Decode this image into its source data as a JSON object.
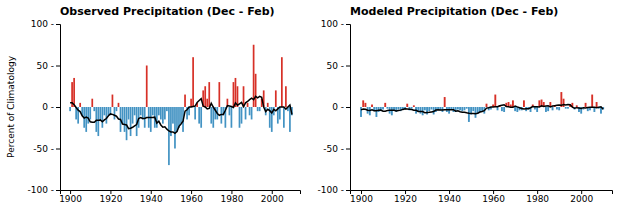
{
  "chart_data": [
    {
      "type": "bar",
      "title": "Observed Precipitation (Dec - Feb)",
      "ylabel": "Percent of Climatology",
      "x": [
        1900,
        1901,
        1902,
        1903,
        1904,
        1905,
        1906,
        1907,
        1908,
        1909,
        1910,
        1911,
        1912,
        1913,
        1914,
        1915,
        1916,
        1917,
        1918,
        1919,
        1920,
        1921,
        1922,
        1923,
        1924,
        1925,
        1926,
        1927,
        1928,
        1929,
        1930,
        1931,
        1932,
        1933,
        1934,
        1935,
        1936,
        1937,
        1938,
        1939,
        1940,
        1941,
        1942,
        1943,
        1944,
        1945,
        1946,
        1947,
        1948,
        1949,
        1950,
        1951,
        1952,
        1953,
        1954,
        1955,
        1956,
        1957,
        1958,
        1959,
        1960,
        1961,
        1962,
        1963,
        1964,
        1965,
        1966,
        1967,
        1968,
        1969,
        1970,
        1971,
        1972,
        1973,
        1974,
        1975,
        1976,
        1977,
        1978,
        1979,
        1980,
        1981,
        1982,
        1983,
        1984,
        1985,
        1986,
        1987,
        1988,
        1989,
        1990,
        1991,
        1992,
        1993,
        1994,
        1995,
        1996,
        1997,
        1998,
        1999,
        2000,
        2001,
        2002,
        2003,
        2004,
        2005,
        2006,
        2007,
        2008,
        2009,
        2010
      ],
      "series": [
        {
          "type": "bar",
          "values": [
            -5,
            30,
            35,
            -15,
            -20,
            5,
            -10,
            -25,
            -30,
            -20,
            -15,
            10,
            -5,
            -30,
            -35,
            -15,
            -25,
            -10,
            -20,
            -10,
            -10,
            15,
            -15,
            -5,
            5,
            -30,
            -20,
            -30,
            -40,
            -15,
            -35,
            -20,
            -10,
            -35,
            -25,
            -10,
            -15,
            -25,
            50,
            -25,
            -30,
            -10,
            -25,
            -25,
            -10,
            -15,
            -20,
            -15,
            -5,
            -70,
            -35,
            -20,
            -50,
            -30,
            -25,
            -20,
            -30,
            15,
            -15,
            -10,
            10,
            60,
            -15,
            5,
            -20,
            -25,
            20,
            25,
            10,
            30,
            -20,
            -25,
            -15,
            -15,
            30,
            -20,
            -10,
            -25,
            10,
            -10,
            -25,
            30,
            35,
            25,
            -25,
            -20,
            25,
            -15,
            5,
            -10,
            -15,
            75,
            40,
            -5,
            -5,
            10,
            20,
            -10,
            5,
            -25,
            -30,
            -10,
            20,
            -20,
            -15,
            60,
            -25,
            25,
            -5,
            -30,
            -10
          ],
          "colors": [
            "#4393c3",
            "#d73027",
            "#d73027",
            "#4393c3",
            "#4393c3",
            "#d73027",
            "#4393c3",
            "#4393c3",
            "#4393c3",
            "#4393c3",
            "#4393c3",
            "#d73027",
            "#4393c3",
            "#4393c3",
            "#4393c3",
            "#4393c3",
            "#4393c3",
            "#4393c3",
            "#4393c3",
            "#4393c3",
            "#4393c3",
            "#d73027",
            "#4393c3",
            "#4393c3",
            "#d73027",
            "#4393c3",
            "#4393c3",
            "#4393c3",
            "#4393c3",
            "#4393c3",
            "#4393c3",
            "#4393c3",
            "#4393c3",
            "#4393c3",
            "#4393c3",
            "#4393c3",
            "#4393c3",
            "#4393c3",
            "#d73027",
            "#4393c3",
            "#4393c3",
            "#4393c3",
            "#4393c3",
            "#4393c3",
            "#4393c3",
            "#4393c3",
            "#4393c3",
            "#4393c3",
            "#4393c3",
            "#4393c3",
            "#4393c3",
            "#4393c3",
            "#4393c3",
            "#4393c3",
            "#4393c3",
            "#4393c3",
            "#4393c3",
            "#d73027",
            "#4393c3",
            "#4393c3",
            "#d73027",
            "#d73027",
            "#4393c3",
            "#d73027",
            "#4393c3",
            "#4393c3",
            "#d73027",
            "#d73027",
            "#d73027",
            "#d73027",
            "#4393c3",
            "#4393c3",
            "#4393c3",
            "#4393c3",
            "#d73027",
            "#4393c3",
            "#4393c3",
            "#4393c3",
            "#d73027",
            "#4393c3",
            "#4393c3",
            "#d73027",
            "#d73027",
            "#d73027",
            "#4393c3",
            "#4393c3",
            "#d73027",
            "#4393c3",
            "#d73027",
            "#4393c3",
            "#4393c3",
            "#d73027",
            "#d73027",
            "#4393c3",
            "#4393c3",
            "#d73027",
            "#d73027",
            "#4393c3",
            "#d73027",
            "#4393c3",
            "#4393c3",
            "#4393c3",
            "#d73027",
            "#4393c3",
            "#4393c3",
            "#d73027",
            "#4393c3",
            "#d73027",
            "#4393c3",
            "#4393c3",
            "#4393c3"
          ]
        },
        {
          "type": "line",
          "color": "#000000",
          "values": [
            5,
            5,
            2.8571,
            -0.625,
            -3.8889,
            -5.5556,
            -10.5556,
            -13.3333,
            -12.2222,
            -13.3333,
            -17.7778,
            -18.3333,
            -18.3333,
            -16.1111,
            -16.1111,
            -15.5556,
            -17.7778,
            -15.5556,
            -13.8889,
            -10.5556,
            -8.3333,
            -8.8889,
            -10,
            -11.1111,
            -14.4444,
            -15,
            -20.5556,
            -21.1111,
            -21.6667,
            -26.1111,
            -25.5556,
            -24.4444,
            -22.7778,
            -21.1111,
            -13.8889,
            -12.7778,
            -13.8889,
            -13.8889,
            -12.7778,
            -12.7778,
            -12.7778,
            -12.7778,
            -12.2222,
            -19.4444,
            -17.2222,
            -21.6667,
            -24.4444,
            -23.8889,
            -26.6667,
            -28.8889,
            -30,
            -30,
            -31.6667,
            -29.4444,
            -23.3333,
            -20.5556,
            -17.2222,
            -5,
            -3.3333,
            0,
            0,
            0.5556,
            1.1111,
            5.5556,
            7.7778,
            10,
            1.1111,
            0,
            -2.2222,
            -1.6667,
            4.4444,
            0,
            -3.8889,
            -7.7778,
            -10,
            -8.8889,
            -8.8889,
            -3.8889,
            1.6667,
            1.1111,
            0.5556,
            -0.5556,
            5,
            2.2222,
            3.8889,
            5.5556,
            0.5556,
            5,
            6.6667,
            8.8889,
            10.5556,
            8.8889,
            12.7778,
            11.1111,
            12.7778,
            11.6667,
            0,
            -5.5556,
            -2.7778,
            -4.4444,
            -7.2222,
            -2.7778,
            -4.4444,
            -2.2222,
            0,
            0,
            0,
            -2.5,
            0,
            2.5,
            -9
          ]
        }
      ],
      "xlim": [
        1895,
        2014
      ],
      "xticks": [
        1900,
        1920,
        1940,
        1960,
        1980,
        2000
      ],
      "ylim": [
        -100,
        100
      ],
      "yticks": [
        {
          "value": -100,
          "label": "-100 -"
        },
        {
          "value": -50,
          "label": "-50 -"
        },
        {
          "value": 0,
          "label": "0 -"
        },
        {
          "value": 50,
          "label": "50 -"
        },
        {
          "value": 100,
          "label": "100 -"
        }
      ],
      "grid": false
    },
    {
      "type": "bar",
      "title": "Modeled Precipitation (Dec - Feb)",
      "x": [
        1900,
        1901,
        1902,
        1903,
        1904,
        1905,
        1906,
        1907,
        1908,
        1909,
        1910,
        1911,
        1912,
        1913,
        1914,
        1915,
        1916,
        1917,
        1918,
        1919,
        1920,
        1921,
        1922,
        1923,
        1924,
        1925,
        1926,
        1927,
        1928,
        1929,
        1930,
        1931,
        1932,
        1933,
        1934,
        1935,
        1936,
        1937,
        1938,
        1939,
        1940,
        1941,
        1942,
        1943,
        1944,
        1945,
        1946,
        1947,
        1948,
        1949,
        1950,
        1951,
        1952,
        1953,
        1954,
        1955,
        1956,
        1957,
        1958,
        1959,
        1960,
        1961,
        1962,
        1963,
        1964,
        1965,
        1966,
        1967,
        1968,
        1969,
        1970,
        1971,
        1972,
        1973,
        1974,
        1975,
        1976,
        1977,
        1978,
        1979,
        1980,
        1981,
        1982,
        1983,
        1984,
        1985,
        1986,
        1987,
        1988,
        1989,
        1990,
        1991,
        1992,
        1993,
        1994,
        1995,
        1996,
        1997,
        1998,
        1999,
        2000,
        2001,
        2002,
        2003,
        2004,
        2005,
        2006,
        2007,
        2008,
        2009,
        2010
      ],
      "series": [
        {
          "type": "bar",
          "values": [
            -12,
            8,
            5,
            -8,
            -10,
            3,
            -5,
            -12,
            -6,
            -5,
            -3,
            5,
            -2,
            -8,
            -10,
            -4,
            -6,
            -3,
            -5,
            -3,
            -3,
            4,
            -4,
            -2,
            2,
            -8,
            -5,
            -8,
            -10,
            -4,
            -9,
            -5,
            -3,
            -9,
            -6,
            -3,
            -4,
            -6,
            12,
            -6,
            -8,
            -3,
            -6,
            -6,
            -3,
            -4,
            -5,
            -4,
            -2,
            -18,
            -9,
            -5,
            -13,
            -8,
            -6,
            -5,
            -8,
            4,
            -4,
            -3,
            3,
            15,
            -4,
            2,
            -5,
            -6,
            5,
            6,
            3,
            8,
            -5,
            -6,
            -4,
            -4,
            8,
            -5,
            -3,
            -6,
            3,
            -3,
            -6,
            8,
            9,
            6,
            -6,
            -5,
            6,
            -4,
            2,
            -3,
            -4,
            18,
            10,
            -2,
            -2,
            3,
            5,
            -3,
            2,
            -6,
            -8,
            -3,
            5,
            -5,
            -4,
            15,
            -6,
            6,
            -2,
            -8,
            -3
          ],
          "colors": [
            "#4393c3",
            "#d73027",
            "#d73027",
            "#4393c3",
            "#4393c3",
            "#d73027",
            "#4393c3",
            "#4393c3",
            "#4393c3",
            "#4393c3",
            "#4393c3",
            "#d73027",
            "#4393c3",
            "#4393c3",
            "#4393c3",
            "#4393c3",
            "#4393c3",
            "#4393c3",
            "#4393c3",
            "#4393c3",
            "#4393c3",
            "#d73027",
            "#4393c3",
            "#4393c3",
            "#d73027",
            "#4393c3",
            "#4393c3",
            "#4393c3",
            "#4393c3",
            "#4393c3",
            "#4393c3",
            "#4393c3",
            "#4393c3",
            "#4393c3",
            "#4393c3",
            "#4393c3",
            "#4393c3",
            "#4393c3",
            "#d73027",
            "#4393c3",
            "#4393c3",
            "#4393c3",
            "#4393c3",
            "#4393c3",
            "#4393c3",
            "#4393c3",
            "#4393c3",
            "#4393c3",
            "#4393c3",
            "#4393c3",
            "#4393c3",
            "#4393c3",
            "#4393c3",
            "#4393c3",
            "#4393c3",
            "#4393c3",
            "#4393c3",
            "#d73027",
            "#4393c3",
            "#4393c3",
            "#d73027",
            "#d73027",
            "#4393c3",
            "#d73027",
            "#4393c3",
            "#4393c3",
            "#d73027",
            "#d73027",
            "#d73027",
            "#d73027",
            "#4393c3",
            "#4393c3",
            "#4393c3",
            "#4393c3",
            "#d73027",
            "#4393c3",
            "#4393c3",
            "#4393c3",
            "#d73027",
            "#4393c3",
            "#4393c3",
            "#d73027",
            "#d73027",
            "#d73027",
            "#4393c3",
            "#4393c3",
            "#d73027",
            "#4393c3",
            "#d73027",
            "#4393c3",
            "#4393c3",
            "#d73027",
            "#d73027",
            "#4393c3",
            "#4393c3",
            "#d73027",
            "#d73027",
            "#4393c3",
            "#d73027",
            "#4393c3",
            "#4393c3",
            "#4393c3",
            "#d73027",
            "#4393c3",
            "#4393c3",
            "#d73027",
            "#4393c3",
            "#d73027",
            "#4393c3",
            "#4393c3",
            "#4393c3"
          ]
        },
        {
          "type": "line",
          "color": "#000000",
          "values": [
            -3.4,
            -2.3333,
            -2.7143,
            -3.875,
            -4.1111,
            -3.3333,
            -4.5556,
            -4.5556,
            -3.8889,
            -3.6667,
            -5.1111,
            -5,
            -4.3333,
            -4,
            -4,
            -4,
            -4.8889,
            -4.2222,
            -3.7778,
            -2.8889,
            -2.2222,
            -2.4444,
            -2.6667,
            -3,
            -3.7778,
            -3.8889,
            -5.3333,
            -5.4444,
            -5.5556,
            -6.7778,
            -6.5556,
            -6.3333,
            -5.8889,
            -5.4444,
            -3.6667,
            -3.3333,
            -3.6667,
            -3.6667,
            -3.3333,
            -3.3333,
            -3.3333,
            -3.3333,
            -3.2222,
            -5,
            -4.5556,
            -5.6667,
            -6.3333,
            -6.2222,
            -7,
            -7.5556,
            -7.7778,
            -7.7778,
            -8.2222,
            -7.5556,
            -6,
            -5.3333,
            -4.4444,
            -1.3333,
            -0.8889,
            0,
            0,
            0.2222,
            0.3333,
            1.4444,
            2.1111,
            2.6667,
            0.4444,
            0.2222,
            -0.4444,
            -0.3333,
            1.2222,
            0.1111,
            -0.8889,
            -1.8889,
            -2.4444,
            -2.2222,
            -2.2222,
            -0.8889,
            0.5556,
            0.3333,
            0.2222,
            0,
            1.3333,
            0.5556,
            1.1111,
            1.4444,
            0.1111,
            1.1111,
            1.5556,
            2,
            2.3333,
            2,
            3,
            2.4444,
            3,
            2.7778,
            -0.1111,
            -1.5556,
            -0.7778,
            -1.1111,
            -1.8889,
            -0.7778,
            -1.1111,
            -0.6667,
            -0.2222,
            -0.2222,
            -0.2222,
            -0.875,
            -0.2857,
            0.3333,
            -2.6
          ]
        }
      ],
      "xlim": [
        1895,
        2014
      ],
      "xticks": [
        1900,
        1920,
        1940,
        1960,
        1980,
        2000
      ],
      "ylim": [
        -100,
        100
      ],
      "yticks": [
        {
          "value": -100,
          "label": "-100 -"
        },
        {
          "value": -50,
          "label": "-50 -"
        },
        {
          "value": 0,
          "label": "0 -"
        },
        {
          "value": 50,
          "label": "50 -"
        },
        {
          "value": 100,
          "label": "100 -"
        }
      ],
      "grid": false
    }
  ]
}
